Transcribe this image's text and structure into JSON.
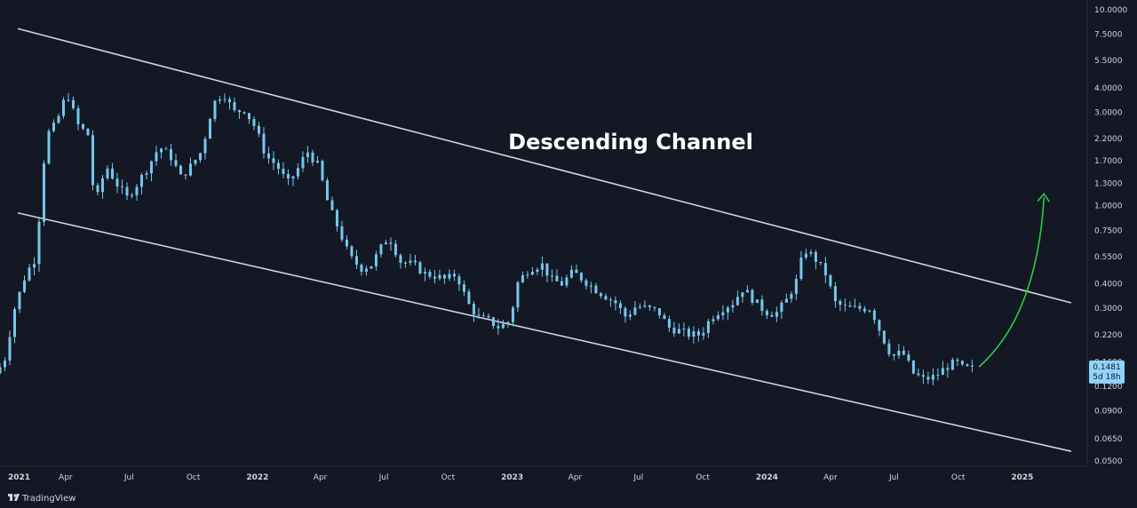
{
  "chart_data": {
    "type": "candlestick",
    "title": "",
    "xlabel": "",
    "ylabel": "",
    "scale": "log",
    "ylim": [
      0.047,
      11.2
    ],
    "xlim": [
      "2020-12-28",
      "2025-04-04"
    ],
    "y_ticks": [
      "10.0000",
      "7.5000",
      "5.5000",
      "4.0000",
      "3.0000",
      "2.2000",
      "1.7000",
      "1.3000",
      "1.0000",
      "0.7500",
      "0.5500",
      "0.4000",
      "0.3000",
      "0.2200",
      "0.1600",
      "0.1200",
      "0.0900",
      "0.0650",
      "0.0500"
    ],
    "x_ticks": [
      {
        "label": "2021",
        "date": "2021-01-01",
        "year": true
      },
      {
        "label": "Apr",
        "date": "2021-04-01",
        "year": false
      },
      {
        "label": "Jul",
        "date": "2021-07-01",
        "year": false
      },
      {
        "label": "Oct",
        "date": "2021-10-01",
        "year": false
      },
      {
        "label": "2022",
        "date": "2022-01-01",
        "year": true
      },
      {
        "label": "Apr",
        "date": "2022-04-01",
        "year": false
      },
      {
        "label": "Jul",
        "date": "2022-07-01",
        "year": false
      },
      {
        "label": "Oct",
        "date": "2022-10-01",
        "year": false
      },
      {
        "label": "2023",
        "date": "2023-01-01",
        "year": true
      },
      {
        "label": "Apr",
        "date": "2023-04-01",
        "year": false
      },
      {
        "label": "Jul",
        "date": "2023-07-01",
        "year": false
      },
      {
        "label": "Oct",
        "date": "2023-10-01",
        "year": false
      },
      {
        "label": "2024",
        "date": "2024-01-01",
        "year": true
      },
      {
        "label": "Apr",
        "date": "2024-04-01",
        "year": false
      },
      {
        "label": "Jul",
        "date": "2024-07-01",
        "year": false
      },
      {
        "label": "Oct",
        "date": "2024-10-01",
        "year": false
      },
      {
        "label": "2025",
        "date": "2025-01-01",
        "year": true
      }
    ],
    "price_path": [
      [
        "2020-12-28",
        0.14
      ],
      [
        "2021-01-10",
        0.16
      ],
      [
        "2021-01-25",
        0.3
      ],
      [
        "2021-02-10",
        0.45
      ],
      [
        "2021-02-25",
        0.55
      ],
      [
        "2021-03-05",
        1.35
      ],
      [
        "2021-03-12",
        2.3
      ],
      [
        "2021-03-25",
        2.6
      ],
      [
        "2021-04-10",
        3.8
      ],
      [
        "2021-04-25",
        2.6
      ],
      [
        "2021-05-10",
        2.3
      ],
      [
        "2021-05-20",
        1.0
      ],
      [
        "2021-06-05",
        1.6
      ],
      [
        "2021-06-20",
        1.3
      ],
      [
        "2021-07-05",
        1.1
      ],
      [
        "2021-07-20",
        1.3
      ],
      [
        "2021-08-05",
        1.6
      ],
      [
        "2021-08-20",
        2.0
      ],
      [
        "2021-09-05",
        1.8
      ],
      [
        "2021-09-20",
        1.4
      ],
      [
        "2021-10-05",
        1.6
      ],
      [
        "2021-10-20",
        1.9
      ],
      [
        "2021-11-05",
        3.3
      ],
      [
        "2021-11-20",
        3.8
      ],
      [
        "2021-12-05",
        3.0
      ],
      [
        "2021-12-20",
        3.1
      ],
      [
        "2022-01-05",
        2.5
      ],
      [
        "2022-01-20",
        1.8
      ],
      [
        "2022-02-05",
        1.6
      ],
      [
        "2022-02-20",
        1.3
      ],
      [
        "2022-03-05",
        1.5
      ],
      [
        "2022-03-20",
        1.9
      ],
      [
        "2022-04-05",
        1.6
      ],
      [
        "2022-04-20",
        1.0
      ],
      [
        "2022-05-05",
        0.75
      ],
      [
        "2022-05-20",
        0.55
      ],
      [
        "2022-06-05",
        0.48
      ],
      [
        "2022-06-20",
        0.5
      ],
      [
        "2022-07-05",
        0.62
      ],
      [
        "2022-07-15",
        0.7
      ],
      [
        "2022-08-01",
        0.52
      ],
      [
        "2022-08-20",
        0.5
      ],
      [
        "2022-09-05",
        0.45
      ],
      [
        "2022-09-20",
        0.44
      ],
      [
        "2022-10-05",
        0.42
      ],
      [
        "2022-10-20",
        0.45
      ],
      [
        "2022-11-05",
        0.32
      ],
      [
        "2022-11-20",
        0.27
      ],
      [
        "2022-12-05",
        0.26
      ],
      [
        "2022-12-20",
        0.24
      ],
      [
        "2023-01-05",
        0.26
      ],
      [
        "2023-01-15",
        0.4
      ],
      [
        "2023-02-01",
        0.48
      ],
      [
        "2023-02-20",
        0.5
      ],
      [
        "2023-03-05",
        0.42
      ],
      [
        "2023-03-20",
        0.4
      ],
      [
        "2023-04-05",
        0.46
      ],
      [
        "2023-04-20",
        0.42
      ],
      [
        "2023-05-05",
        0.38
      ],
      [
        "2023-05-20",
        0.35
      ],
      [
        "2023-06-05",
        0.32
      ],
      [
        "2023-06-20",
        0.27
      ],
      [
        "2023-07-05",
        0.31
      ],
      [
        "2023-07-20",
        0.3
      ],
      [
        "2023-08-05",
        0.29
      ],
      [
        "2023-08-20",
        0.24
      ],
      [
        "2023-09-05",
        0.23
      ],
      [
        "2023-09-20",
        0.22
      ],
      [
        "2023-10-05",
        0.22
      ],
      [
        "2023-10-20",
        0.27
      ],
      [
        "2023-11-05",
        0.3
      ],
      [
        "2023-11-20",
        0.32
      ],
      [
        "2023-12-05",
        0.38
      ],
      [
        "2023-12-20",
        0.33
      ],
      [
        "2024-01-05",
        0.29
      ],
      [
        "2024-01-20",
        0.28
      ],
      [
        "2024-02-05",
        0.33
      ],
      [
        "2024-02-20",
        0.42
      ],
      [
        "2024-03-01",
        0.6
      ],
      [
        "2024-03-15",
        0.55
      ],
      [
        "2024-04-01",
        0.45
      ],
      [
        "2024-04-15",
        0.32
      ],
      [
        "2024-05-01",
        0.3
      ],
      [
        "2024-05-20",
        0.3
      ],
      [
        "2024-06-05",
        0.3
      ],
      [
        "2024-06-20",
        0.22
      ],
      [
        "2024-07-05",
        0.17
      ],
      [
        "2024-07-20",
        0.18
      ],
      [
        "2024-08-05",
        0.14
      ],
      [
        "2024-08-20",
        0.13
      ],
      [
        "2024-09-05",
        0.135
      ],
      [
        "2024-09-20",
        0.15
      ],
      [
        "2024-10-05",
        0.16
      ],
      [
        "2024-10-15",
        0.148
      ],
      [
        "2024-10-26",
        0.1481
      ]
    ],
    "channel": {
      "upper": [
        [
          "2021-01-01",
          8.0
        ],
        [
          "2025-03-25",
          0.32
        ]
      ],
      "lower": [
        [
          "2021-01-01",
          0.92
        ],
        [
          "2025-03-25",
          0.056
        ]
      ]
    },
    "projection_arrow": {
      "from": [
        "2024-10-26",
        0.148
      ],
      "to": [
        "2025-02-01",
        1.15
      ]
    },
    "last_price": {
      "value": "0.1481",
      "countdown": "5d 18h"
    },
    "annotation": "Descending Channel",
    "colors": {
      "background": "#141824",
      "candle": "#74c7ec",
      "channel_line": "#cfd3dc",
      "arrow": "#2ecc40",
      "price_tag": "#8fd3fe",
      "axis_text": "#d1d4dc",
      "axis_border": "#2a2e39"
    },
    "grid": false,
    "legend": "none"
  },
  "footer": {
    "logo_icon": "tradingview-logo-icon",
    "brand": "TradingView"
  }
}
